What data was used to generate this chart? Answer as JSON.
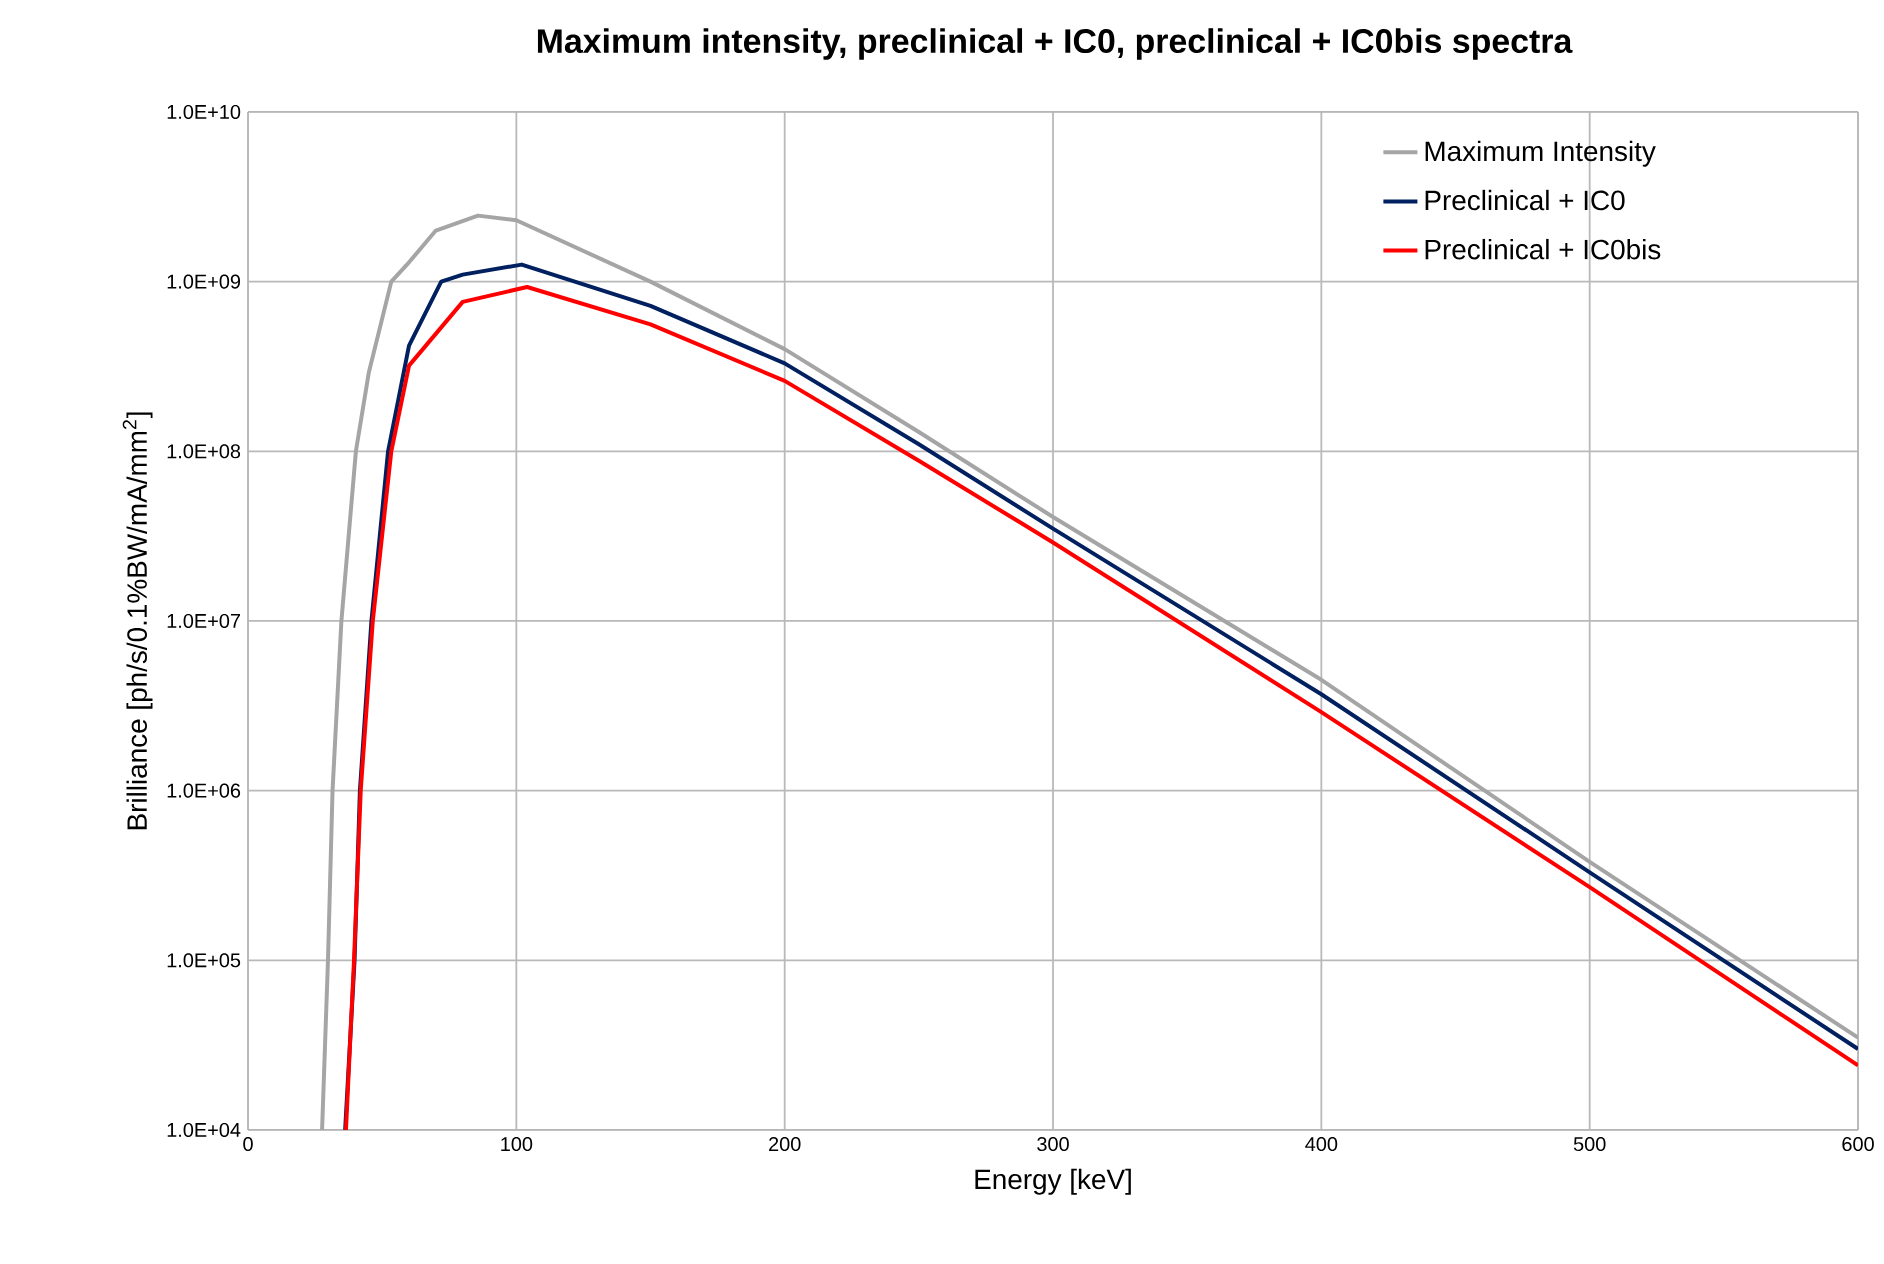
{
  "chart_data": {
    "type": "line",
    "title": "Maximum intensity, preclinical + IC0,  preclinical + IC0bis spectra",
    "xlabel": "Energy [keV]",
    "ylabel": "Brilliance [ph/s/0.1%BW/mA/mm$^{2}$]",
    "log": "y",
    "grid": true,
    "legend": "top right",
    "marker": "none",
    "line_style": "solid",
    "xlim": [
      0,
      600
    ],
    "xticks": [
      0,
      100,
      200,
      300,
      400,
      500,
      600
    ],
    "ylim": [
      10000,
      10000000000
    ],
    "yticks": [
      {
        "value": 10000,
        "label": "1.0E+04"
      },
      {
        "value": 100000,
        "label": "1.0E+05"
      },
      {
        "value": 1000000,
        "label": "1.0E+06"
      },
      {
        "value": 10000000,
        "label": "1.0E+07"
      },
      {
        "value": 100000000,
        "label": "1.0E+08"
      },
      {
        "value": 1000000000,
        "label": "1.0E+09"
      },
      {
        "value": 10000000000,
        "label": "1.0E+10"
      }
    ],
    "series": [
      {
        "name": "Maximum Intensity",
        "color": "#a5a5a5",
        "x": [
          27.6,
          29.8,
          31.5,
          34.8,
          40.2,
          45,
          53.4,
          60,
          70,
          85.7,
          100,
          150,
          200,
          250,
          300,
          400,
          500,
          600
        ],
        "values": [
          10000.0,
          100000.0,
          1000000.0,
          10000000.0,
          100000000.0,
          290000000.0,
          1000000000.0,
          1300000000.0,
          2000000000.0,
          2450000000.0,
          2300000000.0,
          1000000000.0,
          400000000.0,
          130000000.0,
          41000000.0,
          4500000.0,
          380000.0,
          35000.0
        ]
      },
      {
        "name": "Preclinical + IC0",
        "color": "#002060",
        "x": [
          36.2,
          39.7,
          41.7,
          46,
          52.2,
          60,
          72,
          80,
          102,
          150,
          200,
          250,
          300,
          400,
          500,
          600
        ],
        "values": [
          10000.0,
          100000.0,
          1000000.0,
          10000000.0,
          100000000.0,
          420000000.0,
          1000000000.0,
          1100000000.0,
          1260000000.0,
          720000000.0,
          330000000.0,
          110000000.0,
          35000000.0,
          3700000.0,
          330000.0,
          30000.0
        ]
      },
      {
        "name": "Preclinical + IC0bis",
        "color": "#ff0000",
        "x": [
          36.5,
          39.5,
          42,
          46.5,
          53.4,
          60,
          80,
          104,
          150,
          200,
          250,
          300,
          400,
          500,
          600
        ],
        "values": [
          10000.0,
          100000.0,
          1000000.0,
          10000000.0,
          100000000.0,
          320000000.0,
          760000000.0,
          930000000.0,
          560000000.0,
          260000000.0,
          88000000.0,
          29000000.0,
          2900000.0,
          270000.0,
          24000.0
        ]
      }
    ]
  }
}
